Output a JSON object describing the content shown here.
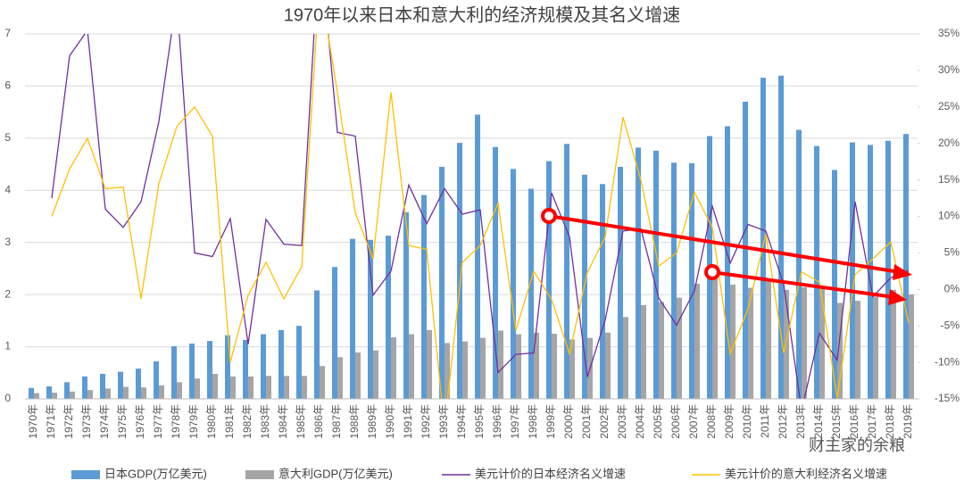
{
  "chart_data": {
    "type": "bar-line",
    "title": "1970年以来日本和意大利的经济规模及其名义增速",
    "categories": [
      "1970年",
      "1971年",
      "1972年",
      "1973年",
      "1974年",
      "1975年",
      "1976年",
      "1977年",
      "1978年",
      "1979年",
      "1980年",
      "1981年",
      "1982年",
      "1983年",
      "1984年",
      "1985年",
      "1986年",
      "1987年",
      "1988年",
      "1989年",
      "1990年",
      "1991年",
      "1992年",
      "1993年",
      "1994年",
      "1995年",
      "1996年",
      "1997年",
      "1998年",
      "1999年",
      "2000年",
      "2001年",
      "2002年",
      "2003年",
      "2004年",
      "2005年",
      "2006年",
      "2007年",
      "2008年",
      "2009年",
      "2010年",
      "2011年",
      "2012年",
      "2013年",
      "2014年",
      "2015年",
      "2016年",
      "2017年",
      "2018年",
      "2019年"
    ],
    "series": [
      {
        "name": "日本GDP(万亿美元)",
        "type": "bar",
        "color": "#5b9bd5",
        "values": [
          0.21,
          0.24,
          0.32,
          0.43,
          0.48,
          0.52,
          0.58,
          0.72,
          1.01,
          1.06,
          1.11,
          1.22,
          1.13,
          1.24,
          1.32,
          1.4,
          2.08,
          2.53,
          3.07,
          3.05,
          3.13,
          3.58,
          3.91,
          4.45,
          4.91,
          5.45,
          4.83,
          4.41,
          4.03,
          4.56,
          4.89,
          4.3,
          4.12,
          4.45,
          4.82,
          4.76,
          4.53,
          4.52,
          5.04,
          5.23,
          5.7,
          6.16,
          6.2,
          5.16,
          4.85,
          4.39,
          4.92,
          4.87,
          4.95,
          5.08
        ]
      },
      {
        "name": "意大利GDP(万亿美元)",
        "type": "bar",
        "color": "#a5a5a5",
        "values": [
          0.11,
          0.12,
          0.14,
          0.17,
          0.2,
          0.23,
          0.22,
          0.26,
          0.32,
          0.39,
          0.48,
          0.43,
          0.43,
          0.44,
          0.44,
          0.44,
          0.63,
          0.8,
          0.89,
          0.93,
          1.18,
          1.24,
          1.32,
          1.07,
          1.1,
          1.17,
          1.31,
          1.24,
          1.27,
          1.25,
          1.14,
          1.17,
          1.27,
          1.57,
          1.8,
          1.86,
          1.94,
          2.21,
          2.4,
          2.19,
          2.13,
          2.29,
          2.09,
          2.14,
          2.16,
          1.84,
          1.88,
          1.96,
          2.09,
          2.0
        ]
      },
      {
        "name": "美元计价的日本经济名义增速",
        "type": "line",
        "axis": "y2",
        "color": "#7030a0",
        "values": [
          null,
          12.5,
          32,
          35.5,
          11,
          8.5,
          12,
          23,
          40,
          5,
          4.5,
          9.7,
          -7.5,
          9.6,
          6.2,
          6,
          48,
          21.5,
          21,
          -0.8,
          2.5,
          14.3,
          9,
          13.8,
          10.3,
          10.9,
          -11.4,
          -8.9,
          -8.7,
          13.2,
          7.2,
          -12,
          -4.2,
          8,
          8.3,
          -1.2,
          -4.9,
          -0.2,
          11.4,
          3.6,
          8.9,
          8,
          0.7,
          -16.6,
          -6,
          -9.7,
          12,
          -1,
          1.6,
          2.6
        ]
      },
      {
        "name": "美元计价的意大利经济名义增速",
        "type": "line",
        "axis": "y2",
        "color": "#ffc000",
        "values": [
          null,
          10,
          16.5,
          20.7,
          13.8,
          14,
          -1.3,
          14.5,
          22.3,
          25,
          21,
          -10,
          -0.8,
          3.7,
          -1.3,
          3.1,
          42,
          27,
          10.5,
          4.2,
          27,
          6,
          5.5,
          -19,
          3.7,
          6,
          11.8,
          -5.6,
          2.5,
          -1.4,
          -8.8,
          2.3,
          7.2,
          23.6,
          15,
          3.2,
          5,
          13.3,
          8.5,
          -8.8,
          -2.7,
          7.6,
          -8.7,
          2.4,
          1,
          -14.9,
          2,
          4.2,
          6.5,
          -4.6
        ]
      }
    ],
    "ylim": [
      0,
      7
    ],
    "yticks": [
      0,
      1,
      2,
      3,
      4,
      5,
      6,
      7
    ],
    "y2lim": [
      -15,
      35
    ],
    "y2ticks": [
      {
        "value": -15,
        "label": "-15%"
      },
      {
        "value": -10,
        "label": "-10%"
      },
      {
        "value": -5,
        "label": "-5%"
      },
      {
        "value": 0,
        "label": "0%"
      },
      {
        "value": 5,
        "label": "5%"
      },
      {
        "value": 10,
        "label": "10%"
      },
      {
        "value": 15,
        "label": "15%"
      },
      {
        "value": 20,
        "label": "20%"
      },
      {
        "value": 25,
        "label": "25%"
      },
      {
        "value": 30,
        "label": "30%"
      },
      {
        "value": 35,
        "label": "35%"
      }
    ],
    "grid": true,
    "legend": "bottom",
    "watermark": "财主家的余粮"
  }
}
